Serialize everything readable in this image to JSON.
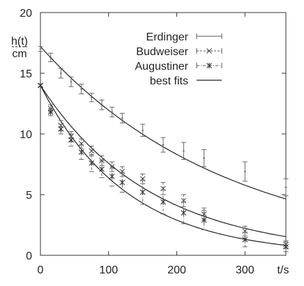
{
  "chart_data": {
    "type": "scatter",
    "xlim": [
      0,
      360
    ],
    "ylim": [
      0,
      20
    ],
    "x_ticks": [
      0,
      100,
      200,
      300
    ],
    "y_ticks": [
      0,
      5,
      10,
      15,
      20
    ],
    "xlabel": "t/s",
    "ylabel_top": "h(t)",
    "ylabel_bottom": "cm",
    "grid": false,
    "legend_position": "top-right",
    "legend_entries": [
      "Erdinger",
      "Budweiser",
      "Augustiner",
      "best fits"
    ],
    "series": [
      {
        "name": "Erdinger",
        "marker": "errorbar",
        "x": [
          0,
          15,
          30,
          45,
          60,
          75,
          90,
          105,
          120,
          150,
          180,
          210,
          240,
          300,
          360
        ],
        "y": [
          17.0,
          16.3,
          15.0,
          14.3,
          13.7,
          13.0,
          12.4,
          11.8,
          11.3,
          10.3,
          9.1,
          8.6,
          8.0,
          6.9,
          5.6
        ],
        "err": [
          0.2,
          0.35,
          0.4,
          0.4,
          0.4,
          0.35,
          0.4,
          0.4,
          0.4,
          0.5,
          0.6,
          0.7,
          0.7,
          0.8,
          0.7
        ]
      },
      {
        "name": "Budweiser",
        "marker": "x",
        "x": [
          0,
          15,
          30,
          45,
          60,
          75,
          90,
          105,
          120,
          150,
          180,
          210,
          240,
          300,
          360
        ],
        "y": [
          14.0,
          12.1,
          10.7,
          9.8,
          9.2,
          8.6,
          7.8,
          7.3,
          6.9,
          6.3,
          5.5,
          4.5,
          3.4,
          2.0,
          0.9
        ],
        "err": [
          0.1,
          0.3,
          0.4,
          0.4,
          0.4,
          0.4,
          0.4,
          0.4,
          0.4,
          0.4,
          0.5,
          0.5,
          0.5,
          0.4,
          0.3
        ]
      },
      {
        "name": "Augustiner",
        "marker": "star",
        "x": [
          0,
          15,
          30,
          45,
          60,
          75,
          90,
          105,
          120,
          150,
          180,
          210,
          240,
          300,
          360
        ],
        "y": [
          14.0,
          11.8,
          10.4,
          9.5,
          8.5,
          7.6,
          7.1,
          6.5,
          6.0,
          5.2,
          4.4,
          3.5,
          2.9,
          1.3,
          0.7
        ],
        "err": [
          0.1,
          0.3,
          0.4,
          0.5,
          0.6,
          0.7,
          0.7,
          0.8,
          0.8,
          1.0,
          1.0,
          0.9,
          0.8,
          0.6,
          0.4
        ]
      }
    ],
    "fits": [
      {
        "for": "Erdinger",
        "y0": 17.2,
        "tau": 275
      },
      {
        "for": "Budweiser",
        "y0": 14.0,
        "tau": 163
      },
      {
        "for": "Augustiner",
        "y0": 14.0,
        "tau": 127
      }
    ]
  }
}
